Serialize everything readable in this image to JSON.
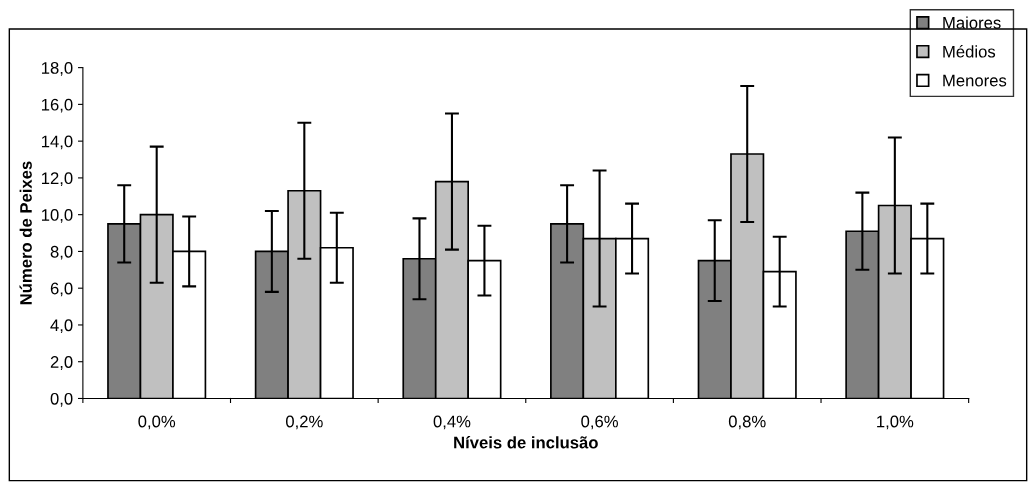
{
  "chart_data": {
    "type": "bar",
    "xlabel": "Níveis de inclusão",
    "ylabel": "Número de Peixes",
    "categories": [
      "0,0%",
      "0,2%",
      "0,4%",
      "0,6%",
      "0,8%",
      "1,0%"
    ],
    "series": [
      {
        "name": "Maiores",
        "color": "#808080",
        "values": [
          9.5,
          8.0,
          7.6,
          9.5,
          7.5,
          9.1
        ],
        "errors": [
          2.1,
          2.2,
          2.2,
          2.1,
          2.2,
          2.1
        ]
      },
      {
        "name": "Médios",
        "color": "#c0c0c0",
        "values": [
          10.0,
          11.3,
          11.8,
          8.7,
          13.3,
          10.5
        ],
        "errors": [
          3.7,
          3.7,
          3.7,
          3.7,
          3.7,
          3.7
        ]
      },
      {
        "name": "Menores",
        "color": "#ffffff",
        "values": [
          8.0,
          8.2,
          7.5,
          8.7,
          6.9,
          8.7
        ],
        "errors": [
          1.9,
          1.9,
          1.9,
          1.9,
          1.9,
          1.9
        ]
      }
    ],
    "ylim": [
      0,
      18
    ],
    "yticks": [
      {
        "value": 0,
        "label": "0,0"
      },
      {
        "value": 2,
        "label": "2,0"
      },
      {
        "value": 4,
        "label": "4,0"
      },
      {
        "value": 6,
        "label": "6,0"
      },
      {
        "value": 8,
        "label": "8,0"
      },
      {
        "value": 10,
        "label": "10,0"
      },
      {
        "value": 12,
        "label": "12,0"
      },
      {
        "value": 14,
        "label": "14,0"
      },
      {
        "value": 16,
        "label": "16,0"
      },
      {
        "value": 18,
        "label": "18,0"
      }
    ],
    "legend": "top right",
    "grid": false
  }
}
